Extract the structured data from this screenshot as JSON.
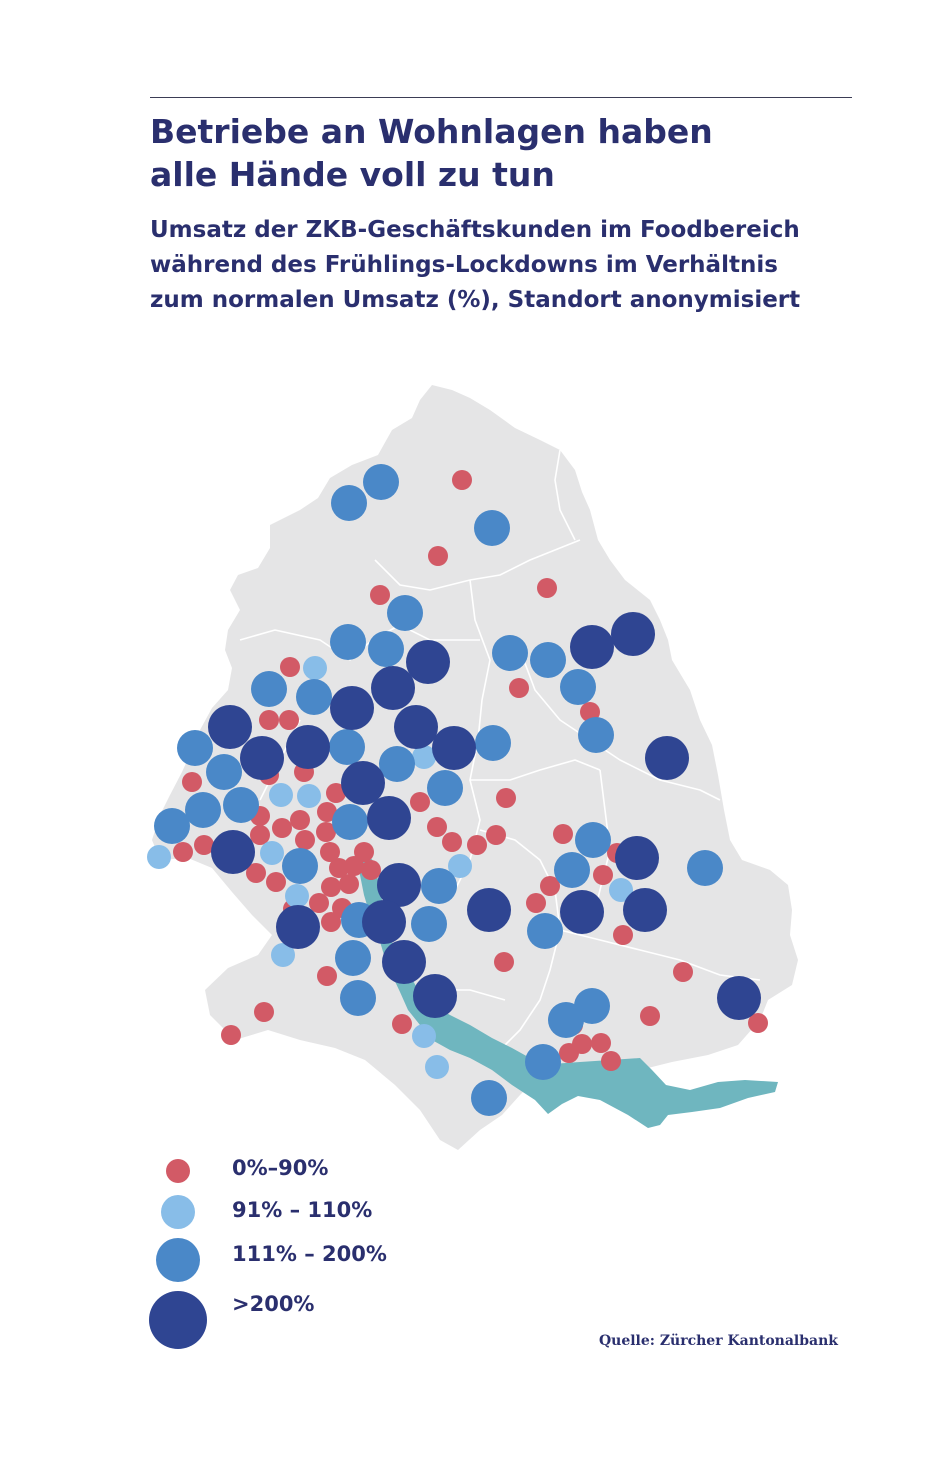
{
  "header": {
    "title_line1": "Betriebe an Wohnlagen haben",
    "title_line2": "alle Hände voll zu tun",
    "subtitle_line1": "Umsatz der ZKB-Geschäftskunden im Foodbereich",
    "subtitle_line2": "während des Frühlings-Lockdowns im Verhältnis",
    "subtitle_line3": "zum normalen Umsatz (%), Standort anonymisiert"
  },
  "legend": {
    "items": [
      {
        "label": "0%–90%",
        "color": "#d25a66"
      },
      {
        "label": "91% – 110%",
        "color": "#88bde8"
      },
      {
        "label": "111% – 200%",
        "color": "#4a88c8"
      },
      {
        "label": ">200%",
        "color": "#2f4592"
      }
    ]
  },
  "source": "Quelle: Zürcher Kantonalbank",
  "colors": {
    "land": "#e5e5e6",
    "lake": "#6fb6bf",
    "border": "#ffffff",
    "text": "#2a2f6e"
  }
}
